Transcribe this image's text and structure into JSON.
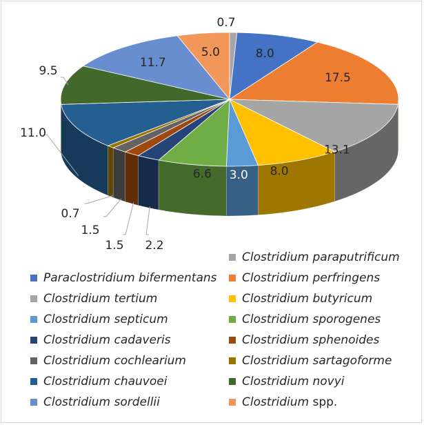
{
  "chart_data": {
    "type": "pie",
    "style": "3d",
    "title": "",
    "unit": "%",
    "slices": [
      {
        "name": "Clostridium paraputrificum",
        "genus": "Clostridium",
        "epithet": "paraputrificum",
        "value": 0.7,
        "label": "0.7",
        "color": "#a5a5a5"
      },
      {
        "name": "Paraclostridium bifermentans",
        "genus": "Paraclostridium bifermentans",
        "epithet": "",
        "value": 8.0,
        "label": "8.0",
        "color": "#4472c4"
      },
      {
        "name": "Clostridium perfringens",
        "genus": "Clostridium",
        "epithet": "perfringens",
        "value": 17.5,
        "label": "17.5",
        "color": "#ed7d31"
      },
      {
        "name": "Clostridium tertium",
        "genus": "Clostridium",
        "epithet": "tertium",
        "value": 13.1,
        "label": "13.1",
        "color": "#a5a5a5"
      },
      {
        "name": "Clostridium butyricum",
        "genus": "Clostridium",
        "epithet": "butyricum",
        "value": 8.0,
        "label": "8.0",
        "color": "#ffc000"
      },
      {
        "name": "Clostridium septicum",
        "genus": "Clostridium",
        "epithet": "septicum",
        "value": 3.0,
        "label": "3.0",
        "color": "#5b9bd5"
      },
      {
        "name": "Clostridium sporogenes",
        "genus": "Clostridium",
        "epithet": "sporogenes",
        "value": 6.6,
        "label": "6.6",
        "color": "#70ad47"
      },
      {
        "name": "Clostridium cadaveris",
        "genus": "Clostridium",
        "epithet": "cadaveris",
        "value": 2.2,
        "label": "2.2",
        "color": "#264478"
      },
      {
        "name": "Clostridium sphenoides",
        "genus": "Clostridium",
        "epithet": "sphenoides",
        "value": 1.5,
        "label": "1.5",
        "color": "#9e480e"
      },
      {
        "name": "Clostridium cochlearium",
        "genus": "Clostridium",
        "epithet": "cochlearium",
        "value": 1.5,
        "label": "1.5",
        "color": "#636363"
      },
      {
        "name": "Clostridium sartagoforme",
        "genus": "Clostridium",
        "epithet": "sartagoforme",
        "value": 0.7,
        "label": "0.7",
        "color": "#997300"
      },
      {
        "name": "Clostridium chauvoei",
        "genus": "Clostridium",
        "epithet": "chauvoei",
        "value": 11.0,
        "label": "11.0",
        "color": "#255e91"
      },
      {
        "name": "Clostridium novyi",
        "genus": "Clostridium",
        "epithet": "novyi",
        "value": 9.5,
        "label": "9.5",
        "color": "#43682b"
      },
      {
        "name": "Clostridium sordellii",
        "genus": "Clostridium",
        "epithet": "sordellii",
        "value": 11.7,
        "label": "11.7",
        "color": "#698ed0"
      },
      {
        "name": "Clostridium spp.",
        "genus": "Clostridium",
        "epithet": "spp.",
        "epithet_italic": false,
        "value": 5.0,
        "label": "5.0",
        "color": "#f1975a"
      }
    ],
    "legend": {
      "position": "bottom",
      "columns": 2,
      "entries": [
        {
          "slice": 0,
          "col": 1,
          "row": 0
        },
        {
          "slice": 1,
          "col": 0,
          "row": 1
        },
        {
          "slice": 2,
          "col": 1,
          "row": 1
        },
        {
          "slice": 3,
          "col": 0,
          "row": 2
        },
        {
          "slice": 4,
          "col": 1,
          "row": 2
        },
        {
          "slice": 5,
          "col": 0,
          "row": 3
        },
        {
          "slice": 6,
          "col": 1,
          "row": 3
        },
        {
          "slice": 7,
          "col": 0,
          "row": 4
        },
        {
          "slice": 8,
          "col": 1,
          "row": 4
        },
        {
          "slice": 9,
          "col": 0,
          "row": 5
        },
        {
          "slice": 10,
          "col": 1,
          "row": 5
        },
        {
          "slice": 11,
          "col": 0,
          "row": 6
        },
        {
          "slice": 12,
          "col": 1,
          "row": 6
        },
        {
          "slice": 13,
          "col": 0,
          "row": 7
        },
        {
          "slice": 14,
          "col": 1,
          "row": 7
        }
      ]
    }
  }
}
